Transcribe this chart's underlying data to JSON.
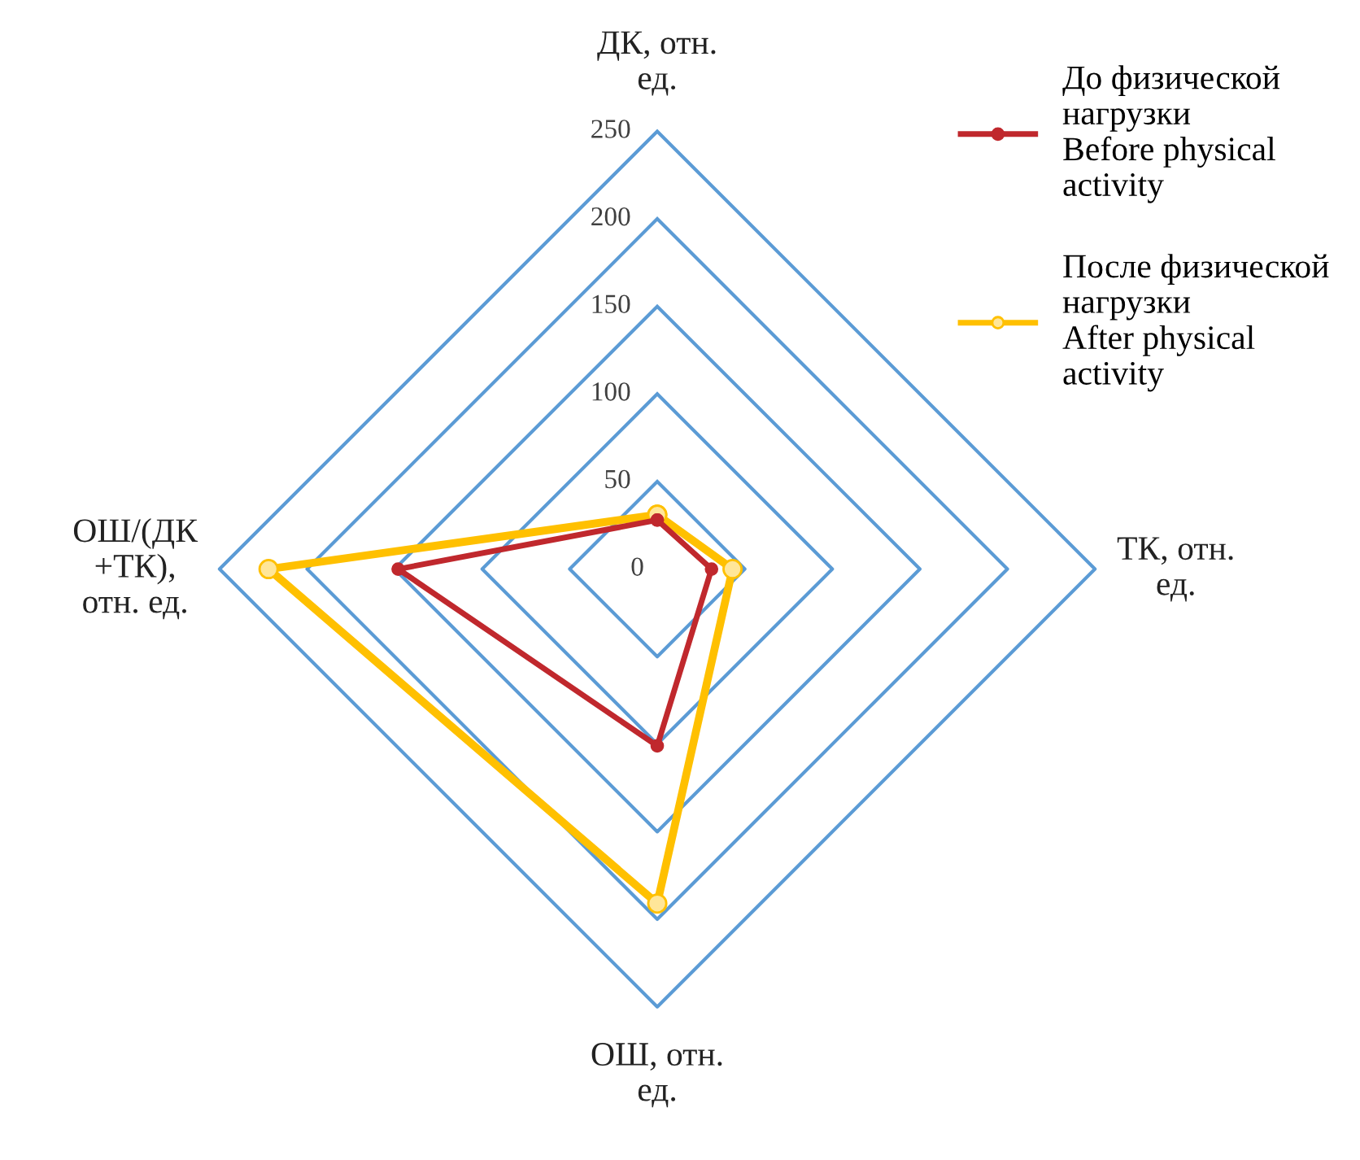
{
  "chart_data": {
    "type": "radar",
    "categories": [
      "ДК, отн.\nед.",
      "ТК, отн.\nед.",
      "ОШ, отн.\nед.",
      "ОШ/(ДК\n+ТК),\nотн. ед."
    ],
    "series": [
      {
        "name": "До физической\nнагрузки\nBefore physical\nactivity",
        "color": "#c0282d",
        "values": [
          28,
          31,
          101,
          148
        ]
      },
      {
        "name": "После физической\nнагрузки\nAfter physical\nactivity",
        "color": "#ffc000",
        "values": [
          31,
          43,
          191,
          222
        ]
      }
    ],
    "ylim": [
      0,
      250
    ],
    "yticks": [
      0,
      50,
      100,
      150,
      200,
      250
    ],
    "grid": true,
    "legend": "top right",
    "marker": "circle",
    "line_style": "solid"
  }
}
